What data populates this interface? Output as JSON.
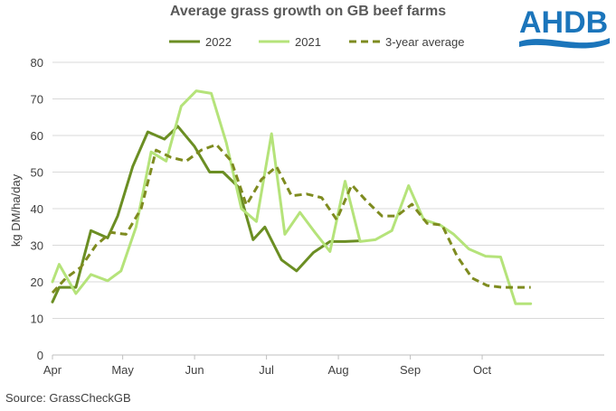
{
  "brand": {
    "logo_text": "AHDB",
    "color": "#1B75BB"
  },
  "source_label": "Source: GrassCheckGB",
  "chart_data": {
    "type": "line",
    "title": "Average grass growth on GB beef farms",
    "xlabel": "",
    "ylabel": "kg DM/ha/day",
    "ylim": [
      0,
      80
    ],
    "yticks": [
      0,
      10,
      20,
      30,
      40,
      50,
      60,
      70,
      80
    ],
    "xlim": [
      0,
      33
    ],
    "xticks": [
      {
        "label": "Apr",
        "pos": 0
      },
      {
        "label": "May",
        "pos": 4.2
      },
      {
        "label": "Jun",
        "pos": 8.5
      },
      {
        "label": "Jul",
        "pos": 12.8
      },
      {
        "label": "Aug",
        "pos": 17.1
      },
      {
        "label": "Sep",
        "pos": 21.4
      },
      {
        "label": "Oct",
        "pos": 25.7
      }
    ],
    "grid": true,
    "legend_position": "top",
    "series": [
      {
        "name": "2022",
        "color": "#6B8E23",
        "dash": false,
        "x": [
          0,
          0.4,
          1,
          1.4,
          2.3,
          3.3,
          3.9,
          4.8,
          5.7,
          6.7,
          7.5,
          8.5,
          9.4,
          10.2,
          11.1,
          12.0,
          12.7,
          13.7,
          14.6,
          15.6,
          16.6,
          17.5,
          18.4
        ],
        "y": [
          14.5,
          18.5,
          18.5,
          18.5,
          34,
          32,
          38,
          51.5,
          61,
          59,
          62.5,
          57,
          50,
          50,
          46,
          31.5,
          35,
          26,
          23,
          28,
          31,
          31,
          31.2
        ]
      },
      {
        "name": "2021",
        "color": "#B5E37A",
        "dash": false,
        "x": [
          0,
          0.4,
          1.4,
          2.3,
          3.3,
          4.1,
          5.0,
          5.9,
          6.8,
          7.7,
          8.6,
          9.5,
          10.4,
          11.3,
          12.2,
          13.1,
          13.9,
          14.8,
          15.7,
          16.6,
          17.5,
          18.4,
          19.3,
          20.3,
          21.3,
          22.2,
          23.2,
          24.0,
          24.9,
          25.9,
          26.8,
          27.7,
          28.6
        ],
        "y": [
          20,
          24.8,
          16.8,
          22,
          20.3,
          23,
          35,
          55.5,
          53,
          68,
          72.2,
          71.5,
          58,
          40,
          36.5,
          60.5,
          33,
          39,
          33.5,
          28.3,
          47.5,
          31,
          31.5,
          34,
          46.3,
          37,
          35.5,
          33,
          29,
          27,
          26.8,
          14,
          14
        ]
      },
      {
        "name": "3-year average",
        "color": "#7E8B1F",
        "dash": true,
        "x": [
          0,
          0.8,
          1.7,
          2.6,
          3.5,
          4.4,
          5.3,
          6.2,
          7.1,
          8.0,
          8.9,
          9.8,
          10.7,
          11.6,
          12.5,
          13.4,
          14.3,
          15.2,
          16.1,
          17.0,
          17.9,
          18.8,
          19.7,
          20.6,
          21.5,
          22.4,
          23.3,
          24.2,
          25.1,
          26.0,
          26.9,
          27.8,
          28.6
        ],
        "y": [
          17,
          21,
          24,
          30,
          33.5,
          33,
          40,
          56,
          54,
          53,
          56,
          57.5,
          53,
          41,
          48,
          51.5,
          43.5,
          44,
          43,
          37,
          46.5,
          42,
          38,
          38,
          41.2,
          36,
          35.5,
          27,
          21,
          19,
          18.5,
          18.5,
          18.5
        ]
      }
    ]
  }
}
